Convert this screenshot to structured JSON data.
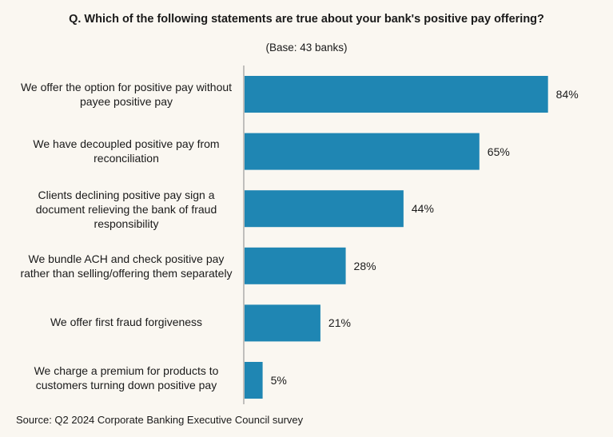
{
  "chart_data": {
    "type": "bar",
    "orientation": "horizontal",
    "title": "Q. Which of the following statements are true about your bank's positive pay offering?",
    "subtitle": "(Base: 43 banks)",
    "categories": [
      "We offer the option for positive pay without payee positive pay",
      "We have decoupled positive pay from reconciliation",
      "Clients declining positive pay sign a document relieving the bank of fraud responsibility",
      "We bundle ACH and check positive pay rather than selling/offering them separately",
      "We offer first fraud forgiveness",
      "We charge a premium for products to customers turning down positive pay"
    ],
    "values": [
      84,
      65,
      44,
      28,
      21,
      5
    ],
    "value_labels": [
      "84%",
      "65%",
      "44%",
      "28%",
      "21%",
      "5%"
    ],
    "unit": "%",
    "xlim": [
      0,
      100
    ],
    "bar_color": "#1f86b3",
    "axis_color": "#9a9a9a",
    "grid": false,
    "legend": "none"
  },
  "source": "Source: Q2 2024 Corporate Banking Executive Council survey"
}
